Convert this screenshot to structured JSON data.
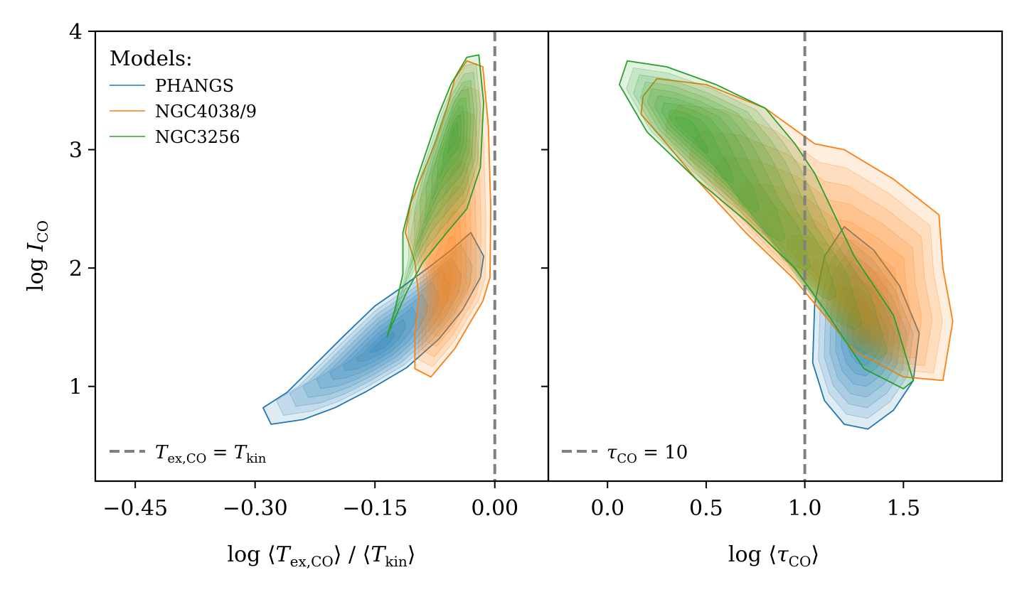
{
  "colors": {
    "PHANGS": "#1f77b4",
    "NGC4038/9": "#ff7f0e",
    "NGC3256": "#2ca02c",
    "reference_line": "#808080"
  },
  "chart_data": [
    {
      "type": "kde-contour",
      "panel": "left",
      "xlabel": "log ⟨T_ex,CO⟩ / ⟨T_kin⟩",
      "ylabel": "log I_CO",
      "xlim": [
        -0.5,
        0.067
      ],
      "ylim": [
        0.2,
        4.0
      ],
      "xticks": [
        -0.45,
        -0.3,
        -0.15,
        0.0
      ],
      "xtick_labels": [
        "−0.45",
        "−0.30",
        "−0.15",
        "0.00"
      ],
      "yticks": [
        1,
        2,
        3,
        4
      ],
      "ytick_labels": [
        "1",
        "2",
        "3",
        "4"
      ],
      "legend": {
        "title": "Models:",
        "entries": [
          "PHANGS",
          "NGC4038/9",
          "NGC3256"
        ],
        "placement": "top-left"
      },
      "reference_line": {
        "x": 0.0,
        "label": "T_ex,CO = T_kin",
        "placement": "bottom-left"
      },
      "series": [
        {
          "name": "PHANGS",
          "outline": [
            [
              -0.28,
              0.68
            ],
            [
              -0.24,
              0.72
            ],
            [
              -0.2,
              0.82
            ],
            [
              -0.16,
              0.96
            ],
            [
              -0.11,
              1.16
            ],
            [
              -0.07,
              1.4
            ],
            [
              -0.04,
              1.65
            ],
            [
              -0.018,
              1.92
            ],
            [
              -0.014,
              2.1
            ],
            [
              -0.03,
              2.3
            ],
            [
              -0.055,
              2.15
            ],
            [
              -0.08,
              2.02
            ],
            [
              -0.1,
              1.92
            ],
            [
              -0.12,
              1.82
            ],
            [
              -0.15,
              1.68
            ],
            [
              -0.19,
              1.42
            ],
            [
              -0.23,
              1.15
            ],
            [
              -0.26,
              0.95
            ],
            [
              -0.29,
              0.82
            ]
          ],
          "peak": [
            -0.14,
            1.36
          ]
        },
        {
          "name": "NGC4038/9",
          "outline": [
            [
              -0.08,
              1.08
            ],
            [
              -0.05,
              1.32
            ],
            [
              -0.03,
              1.55
            ],
            [
              -0.015,
              1.72
            ],
            [
              -0.006,
              1.92
            ],
            [
              -0.005,
              2.5
            ],
            [
              -0.008,
              3.2
            ],
            [
              -0.015,
              3.7
            ],
            [
              -0.035,
              3.75
            ],
            [
              -0.05,
              3.6
            ],
            [
              -0.06,
              3.35
            ],
            [
              -0.075,
              3.05
            ],
            [
              -0.09,
              2.8
            ],
            [
              -0.105,
              2.55
            ],
            [
              -0.112,
              2.3
            ],
            [
              -0.1,
              2.05
            ],
            [
              -0.095,
              1.75
            ],
            [
              -0.1,
              1.45
            ],
            [
              -0.1,
              1.15
            ]
          ],
          "peak": [
            -0.06,
            1.85
          ]
        },
        {
          "name": "NGC3256",
          "outline": [
            [
              -0.135,
              1.42
            ],
            [
              -0.125,
              1.65
            ],
            [
              -0.115,
              1.95
            ],
            [
              -0.115,
              2.3
            ],
            [
              -0.1,
              2.7
            ],
            [
              -0.085,
              3.0
            ],
            [
              -0.07,
              3.3
            ],
            [
              -0.055,
              3.55
            ],
            [
              -0.035,
              3.78
            ],
            [
              -0.02,
              3.8
            ],
            [
              -0.014,
              3.4
            ],
            [
              -0.018,
              2.85
            ],
            [
              -0.035,
              2.5
            ],
            [
              -0.06,
              2.3
            ],
            [
              -0.09,
              2.05
            ],
            [
              -0.11,
              1.8
            ],
            [
              -0.13,
              1.5
            ]
          ],
          "peak": [
            -0.05,
            3.15
          ]
        }
      ]
    },
    {
      "type": "kde-contour",
      "panel": "right",
      "xlabel": "log ⟨τ_CO⟩",
      "xlim": [
        -0.3,
        2.0
      ],
      "ylim": [
        0.2,
        4.0
      ],
      "xticks": [
        0.0,
        0.5,
        1.0,
        1.5
      ],
      "xtick_labels": [
        "0.0",
        "0.5",
        "1.0",
        "1.5"
      ],
      "reference_line": {
        "x": 1.0,
        "label": "τ_CO = 10",
        "placement": "bottom-left"
      },
      "series": [
        {
          "name": "PHANGS",
          "outline": [
            [
              1.05,
              1.7
            ],
            [
              1.1,
              2.1
            ],
            [
              1.2,
              2.35
            ],
            [
              1.35,
              2.15
            ],
            [
              1.48,
              1.85
            ],
            [
              1.58,
              1.45
            ],
            [
              1.55,
              1.05
            ],
            [
              1.45,
              0.8
            ],
            [
              1.32,
              0.64
            ],
            [
              1.2,
              0.68
            ],
            [
              1.1,
              0.88
            ],
            [
              1.04,
              1.2
            ]
          ],
          "peak": [
            1.3,
            1.45
          ]
        },
        {
          "name": "NGC4038/9",
          "outline": [
            [
              0.18,
              3.45
            ],
            [
              0.25,
              3.6
            ],
            [
              0.5,
              3.55
            ],
            [
              0.8,
              3.35
            ],
            [
              1.05,
              3.05
            ],
            [
              1.2,
              3.0
            ],
            [
              1.45,
              2.75
            ],
            [
              1.68,
              2.45
            ],
            [
              1.7,
              2.0
            ],
            [
              1.75,
              1.55
            ],
            [
              1.7,
              1.05
            ],
            [
              1.5,
              1.08
            ],
            [
              1.25,
              1.3
            ],
            [
              1.1,
              1.6
            ],
            [
              0.95,
              1.9
            ],
            [
              0.7,
              2.3
            ],
            [
              0.45,
              2.75
            ],
            [
              0.3,
              3.05
            ],
            [
              0.17,
              3.3
            ]
          ],
          "peak": [
            1.28,
            1.62
          ]
        },
        {
          "name": "NGC3256",
          "outline": [
            [
              0.1,
              3.75
            ],
            [
              0.3,
              3.7
            ],
            [
              0.55,
              3.55
            ],
            [
              0.8,
              3.35
            ],
            [
              0.95,
              3.05
            ],
            [
              1.05,
              2.8
            ],
            [
              1.25,
              2.1
            ],
            [
              1.45,
              1.6
            ],
            [
              1.55,
              1.05
            ],
            [
              1.5,
              0.98
            ],
            [
              1.3,
              1.15
            ],
            [
              1.1,
              1.65
            ],
            [
              0.95,
              2.0
            ],
            [
              0.7,
              2.4
            ],
            [
              0.45,
              2.75
            ],
            [
              0.2,
              3.15
            ],
            [
              0.06,
              3.55
            ]
          ],
          "peak": [
            0.38,
            3.22
          ]
        }
      ]
    }
  ]
}
